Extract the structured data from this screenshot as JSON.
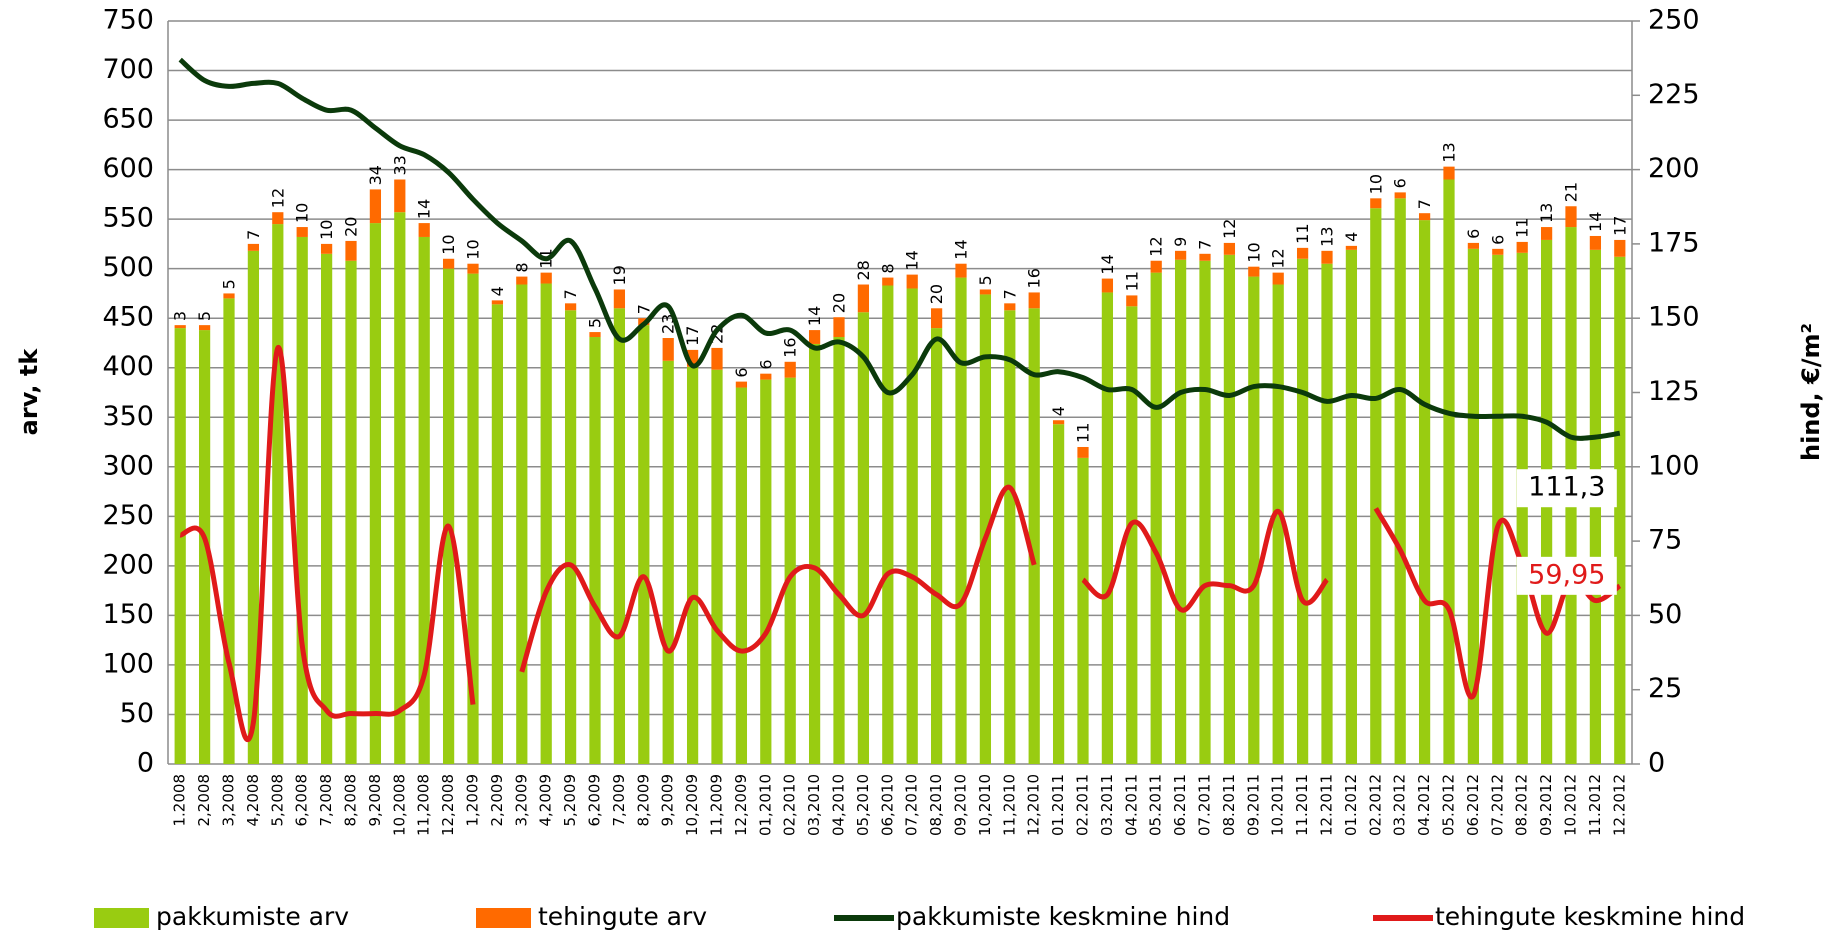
{
  "chart_data": {
    "type": "bar",
    "stacked": true,
    "categories": [
      "1.2008",
      "2,2008",
      "3,2008",
      "4,2008",
      "5,2008",
      "6,2008",
      "7,2008",
      "8,2008",
      "9,2008",
      "10,2008",
      "11,2008",
      "12,2008",
      "1,2009",
      "2,2009",
      "3,2009",
      "4,2009",
      "5,2009",
      "6,2009",
      "7,2009",
      "8,2009",
      "9,2009",
      "10,2009",
      "11,2009",
      "12,2009",
      "01,2010",
      "02,2010",
      "03,2010",
      "04,2010",
      "05,2010",
      "06,2010",
      "07,2010",
      "08,2010",
      "09,2010",
      "10,2010",
      "11,2010",
      "12,2010",
      "01.2011",
      "02.2011",
      "03.2011",
      "04.2011",
      "05.2011",
      "06.2011",
      "07.2011",
      "08.2011",
      "09.2011",
      "10.2011",
      "11.2011",
      "12.2011",
      "01.2012",
      "02.2012",
      "03.2012",
      "04.2012",
      "05.2012",
      "06.2012",
      "07.2012",
      "08.2012",
      "09.2012",
      "10.2012",
      "11.2012",
      "12.2012"
    ],
    "series": [
      {
        "name": "pakkumiste arv",
        "color": "#99cc11",
        "values": [
          440,
          438,
          470,
          518,
          545,
          532,
          515,
          508,
          546,
          557,
          532,
          500,
          495,
          464,
          484,
          485,
          458,
          431,
          460,
          443,
          407,
          401,
          398,
          380,
          388,
          390,
          424,
          431,
          456,
          483,
          480,
          440,
          491,
          474,
          458,
          460,
          343,
          309,
          476,
          462,
          496,
          509,
          508,
          514,
          492,
          484,
          510,
          505,
          519,
          561,
          571,
          549,
          590,
          520,
          514,
          516,
          529,
          542,
          519,
          512
        ]
      },
      {
        "name": "tehingute arv",
        "color": "#ff6a00",
        "values": [
          3,
          5,
          5,
          7,
          12,
          10,
          10,
          20,
          34,
          33,
          14,
          10,
          10,
          4,
          8,
          11,
          7,
          5,
          19,
          7,
          23,
          17,
          22,
          6,
          6,
          16,
          14,
          20,
          28,
          8,
          14,
          20,
          14,
          5,
          7,
          16,
          4,
          11,
          14,
          11,
          12,
          9,
          7,
          12,
          10,
          12,
          11,
          13,
          4,
          10,
          6,
          7,
          13,
          6,
          6,
          11,
          13,
          21,
          14,
          17
        ]
      },
      {
        "name": "pakkumiste keskmine hind",
        "color": "#0b3a0b",
        "axis": "y2",
        "values": [
          237,
          230,
          228,
          229,
          229,
          224,
          220,
          220,
          214,
          208,
          205,
          199,
          190,
          182,
          176,
          170,
          176,
          160,
          143,
          148,
          154,
          134,
          146,
          151,
          145,
          146,
          140,
          142,
          137,
          125,
          131,
          143,
          135,
          137,
          136,
          131,
          132,
          130,
          126,
          126,
          120,
          125,
          126,
          124,
          127,
          127,
          125,
          122,
          124,
          123,
          126,
          121,
          118,
          117,
          117,
          117,
          115,
          110,
          110,
          111.3
        ],
        "value_labels": [
          null,
          null,
          null,
          null,
          null,
          null,
          null,
          null,
          null,
          null,
          null,
          null,
          null,
          null,
          null,
          null,
          null,
          null,
          null,
          null,
          null,
          null,
          null,
          null,
          null,
          null,
          null,
          null,
          null,
          null,
          null,
          null,
          null,
          null,
          null,
          null,
          null,
          null,
          null,
          null,
          null,
          null,
          null,
          null,
          null,
          null,
          null,
          null,
          null,
          null,
          null,
          null,
          null,
          null,
          null,
          null,
          null,
          null,
          null,
          "111,3"
        ]
      },
      {
        "name": "tehingute keskmine hind",
        "color": "#e01a1a",
        "axis": "y2",
        "values": [
          77,
          76,
          34,
          14,
          140,
          40,
          18,
          17,
          17,
          18,
          30,
          80,
          20,
          null,
          31,
          58,
          67,
          53,
          43,
          63,
          38,
          56,
          45,
          38,
          44,
          63,
          66,
          57,
          50,
          64,
          63,
          57,
          54,
          76,
          93,
          67,
          null,
          62,
          57,
          81,
          71,
          52,
          60,
          60,
          60,
          85,
          55,
          62,
          null,
          86,
          72,
          55,
          52,
          23,
          80,
          67,
          44,
          62,
          55,
          59.95
        ],
        "value_labels": [
          null,
          null,
          null,
          null,
          null,
          null,
          null,
          null,
          null,
          null,
          null,
          null,
          null,
          null,
          null,
          null,
          null,
          null,
          null,
          null,
          null,
          null,
          null,
          null,
          null,
          null,
          null,
          null,
          null,
          null,
          null,
          null,
          null,
          null,
          null,
          null,
          null,
          null,
          null,
          null,
          null,
          null,
          null,
          null,
          null,
          null,
          null,
          null,
          null,
          null,
          null,
          null,
          null,
          null,
          null,
          null,
          null,
          null,
          null,
          "59,95"
        ]
      }
    ],
    "ylabel": "arv, tk",
    "y2label": "hind, €/m²",
    "ylim": [
      0,
      750
    ],
    "yticks": [
      0,
      50,
      100,
      150,
      200,
      250,
      300,
      350,
      400,
      450,
      500,
      550,
      600,
      650,
      700,
      750
    ],
    "y2lim": [
      0,
      250
    ],
    "y2ticks": [
      0,
      25,
      50,
      75,
      100,
      125,
      150,
      175,
      200,
      225,
      250
    ],
    "grid": true
  }
}
